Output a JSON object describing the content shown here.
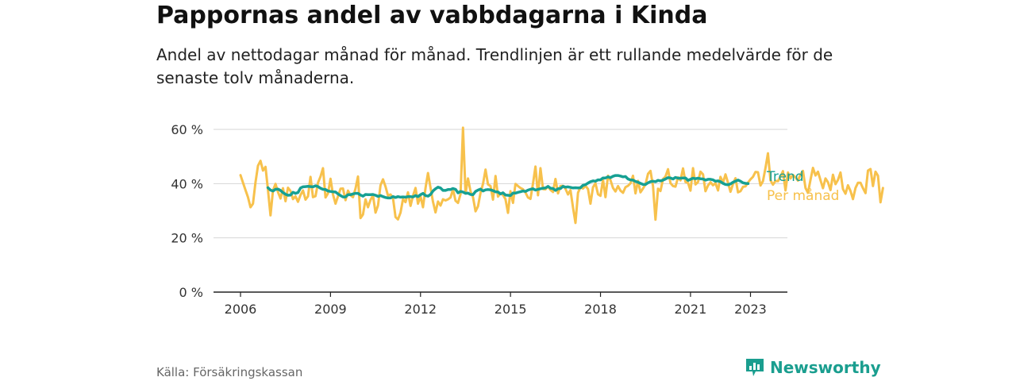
{
  "header": {
    "title": "Pappornas andel av vabbdagarna i Kinda",
    "subtitle": "Andel av nettodagar månad för månad. Trendlinjen är ett rullande medelvärde för de senaste tolv månaderna."
  },
  "footer": {
    "source": "Källa: Försäkringskassan",
    "brand": "Newsworthy"
  },
  "colors": {
    "trend": "#16a093",
    "monthly": "#f7c14c",
    "grid": "#d6d6d6",
    "axis": "#222222",
    "brand": "#1a9e8f"
  },
  "chart_data": {
    "type": "line",
    "title": "Pappornas andel av vabbdagarna i Kinda",
    "xlabel": "",
    "ylabel": "",
    "ylim": [
      0,
      60
    ],
    "xlim": [
      "2006-01",
      "2023-07"
    ],
    "y_ticks": [
      "0 %",
      "20 %",
      "40 %",
      "60 %"
    ],
    "y_tick_values": [
      0,
      20,
      40,
      60
    ],
    "x_ticks": [
      "2006",
      "2009",
      "2012",
      "2015",
      "2018",
      "2021",
      "2023"
    ],
    "x_tick_values": [
      "2006-01",
      "2009-01",
      "2012-01",
      "2015-01",
      "2018-01",
      "2021-01",
      "2023-01"
    ],
    "grid": true,
    "legend": "right",
    "series": [
      {
        "name": "Trend",
        "x_start": "2006-12",
        "values": [
          38.5,
          37.6,
          37.3,
          37.9,
          38.0,
          37.5,
          36.7,
          36.1,
          35.7,
          35.8,
          36.8,
          36.4,
          36.7,
          38.4,
          38.8,
          38.9,
          39.0,
          38.9,
          38.8,
          39.2,
          38.9,
          38.3,
          37.9,
          37.8,
          37.3,
          37.1,
          37.0,
          36.9,
          36.2,
          35.6,
          35.1,
          35.1,
          35.9,
          35.9,
          36.2,
          36.4,
          36.4,
          35.8,
          35.4,
          36.0,
          35.9,
          35.9,
          36.0,
          35.7,
          35.3,
          35.6,
          35.2,
          34.9,
          34.7,
          34.7,
          35.2,
          34.9,
          35.2,
          35.0,
          35.1,
          35.0,
          35.2,
          35.2,
          35.1,
          35.6,
          35.2,
          35.9,
          36.4,
          35.6,
          35.4,
          36.0,
          37.3,
          38.1,
          38.7,
          38.4,
          37.5,
          37.5,
          37.8,
          37.8,
          38.2,
          37.9,
          36.6,
          37.1,
          36.9,
          36.4,
          36.5,
          36.0,
          35.9,
          37.1,
          37.6,
          38.0,
          37.3,
          37.7,
          37.8,
          37.7,
          37.4,
          37.0,
          36.9,
          36.2,
          36.6,
          35.8,
          35.7,
          35.6,
          36.5,
          36.5,
          36.8,
          37.0,
          37.3,
          37.1,
          37.6,
          37.9,
          38.1,
          37.6,
          37.9,
          38.1,
          38.3,
          38.4,
          39.0,
          38.3,
          38.2,
          37.5,
          38.1,
          38.2,
          39.0,
          38.7,
          38.8,
          38.6,
          38.4,
          38.5,
          38.4,
          38.5,
          39.4,
          39.6,
          40.2,
          40.7,
          41.0,
          40.9,
          41.4,
          41.4,
          42.1,
          42.1,
          42.5,
          42.2,
          42.7,
          43.0,
          43.0,
          42.8,
          42.5,
          42.6,
          41.7,
          41.4,
          41.3,
          40.8,
          40.5,
          40.1,
          39.7,
          39.7,
          40.3,
          40.7,
          40.9,
          40.7,
          41.2,
          41.0,
          41.3,
          41.7,
          42.2,
          42.1,
          41.7,
          42.3,
          42.0,
          42.0,
          42.1,
          42.1,
          41.2,
          41.6,
          42.0,
          41.8,
          42.0,
          41.8,
          41.7,
          41.3,
          41.6,
          41.6,
          41.4,
          40.9,
          41.0,
          40.7,
          40.1,
          39.7,
          39.6,
          39.9,
          40.5,
          40.9,
          41.3,
          40.9,
          40.3,
          40.1,
          40.0
        ]
      },
      {
        "name": "Per månad",
        "x_start": "2006-01",
        "values": [
          43.1,
          40.4,
          37.6,
          35.0,
          31.3,
          32.6,
          40.5,
          46.6,
          48.4,
          44.8,
          46.2,
          37.7,
          28.3,
          37.5,
          39.9,
          36.9,
          34.5,
          38.3,
          33.5,
          38.5,
          37.3,
          34.3,
          35.3,
          33.3,
          35.8,
          37.5,
          34.1,
          35.3,
          42.5,
          35.0,
          35.4,
          40.3,
          42.6,
          45.7,
          34.9,
          36.4,
          41.8,
          36.0,
          32.6,
          35.3,
          38.1,
          38.2,
          33.9,
          37.4,
          35.7,
          35.0,
          38.2,
          42.6,
          27.3,
          28.6,
          34.2,
          31.3,
          34.0,
          35.6,
          29.3,
          31.9,
          39.4,
          41.6,
          38.9,
          35.6,
          36.0,
          34.7,
          27.7,
          26.8,
          29.3,
          34.3,
          33.2,
          36.8,
          31.8,
          35.5,
          38.4,
          32.6,
          35.3,
          31.3,
          38.4,
          43.9,
          38.5,
          33.3,
          29.4,
          33.4,
          31.9,
          34.2,
          33.8,
          34.2,
          34.9,
          37.9,
          33.7,
          32.9,
          36.1,
          60.6,
          36.4,
          41.9,
          37.1,
          35.0,
          29.8,
          31.6,
          36.6,
          39.9,
          45.2,
          39.7,
          39.1,
          34.1,
          42.8,
          35.2,
          36.5,
          35.8,
          34.3,
          29.2,
          37.2,
          32.9,
          39.9,
          39.1,
          38.4,
          37.9,
          36.7,
          34.9,
          34.4,
          40.0,
          46.3,
          35.7,
          45.7,
          38.0,
          37.9,
          39.0,
          37.7,
          36.9,
          41.7,
          36.4,
          39.1,
          39.2,
          38.1,
          36.0,
          37.6,
          31.2,
          25.5,
          36.6,
          38.7,
          38.2,
          39.2,
          38.0,
          32.6,
          38.7,
          40.1,
          36.1,
          35.5,
          41.5,
          35.0,
          42.9,
          41.3,
          38.4,
          37.1,
          39.1,
          37.4,
          36.6,
          38.7,
          39.2,
          40.1,
          42.9,
          36.4,
          41.0,
          36.8,
          38.2,
          39.7,
          43.6,
          44.7,
          39.1,
          26.7,
          38.1,
          37.3,
          41.7,
          42.6,
          45.3,
          40.2,
          39.1,
          38.9,
          42.3,
          41.2,
          45.6,
          40.6,
          40.3,
          37.4,
          45.7,
          39.7,
          40.6,
          44.4,
          43.4,
          37.2,
          39.3,
          40.5,
          39.4,
          40.2,
          37.5,
          42.5,
          40.4,
          43.4,
          40.3,
          37.0,
          39.9,
          42.0,
          36.8,
          37.2,
          38.8,
          39.0,
          40.4,
          41.6,
          42.5,
          44.3,
          44.2,
          39.3,
          40.9,
          45.8,
          51.2,
          41.2,
          39.6,
          41.0,
          40.9,
          42.6,
          44.6,
          37.5,
          44.1,
          41.9,
          43.2,
          42.3,
          41.1,
          43.4,
          44.7,
          38.4,
          36.6,
          41.4,
          45.8,
          43.0,
          44.4,
          41.3,
          38.3,
          41.9,
          40.5,
          37.6,
          43.3,
          39.8,
          41.4,
          44.1,
          38.0,
          36.3,
          39.4,
          37.3,
          34.3,
          38.4,
          40.3,
          40.3,
          38.3,
          36.5,
          44.8,
          45.4,
          39.1,
          44.4,
          42.9,
          33.1,
          38.4
        ]
      }
    ]
  }
}
